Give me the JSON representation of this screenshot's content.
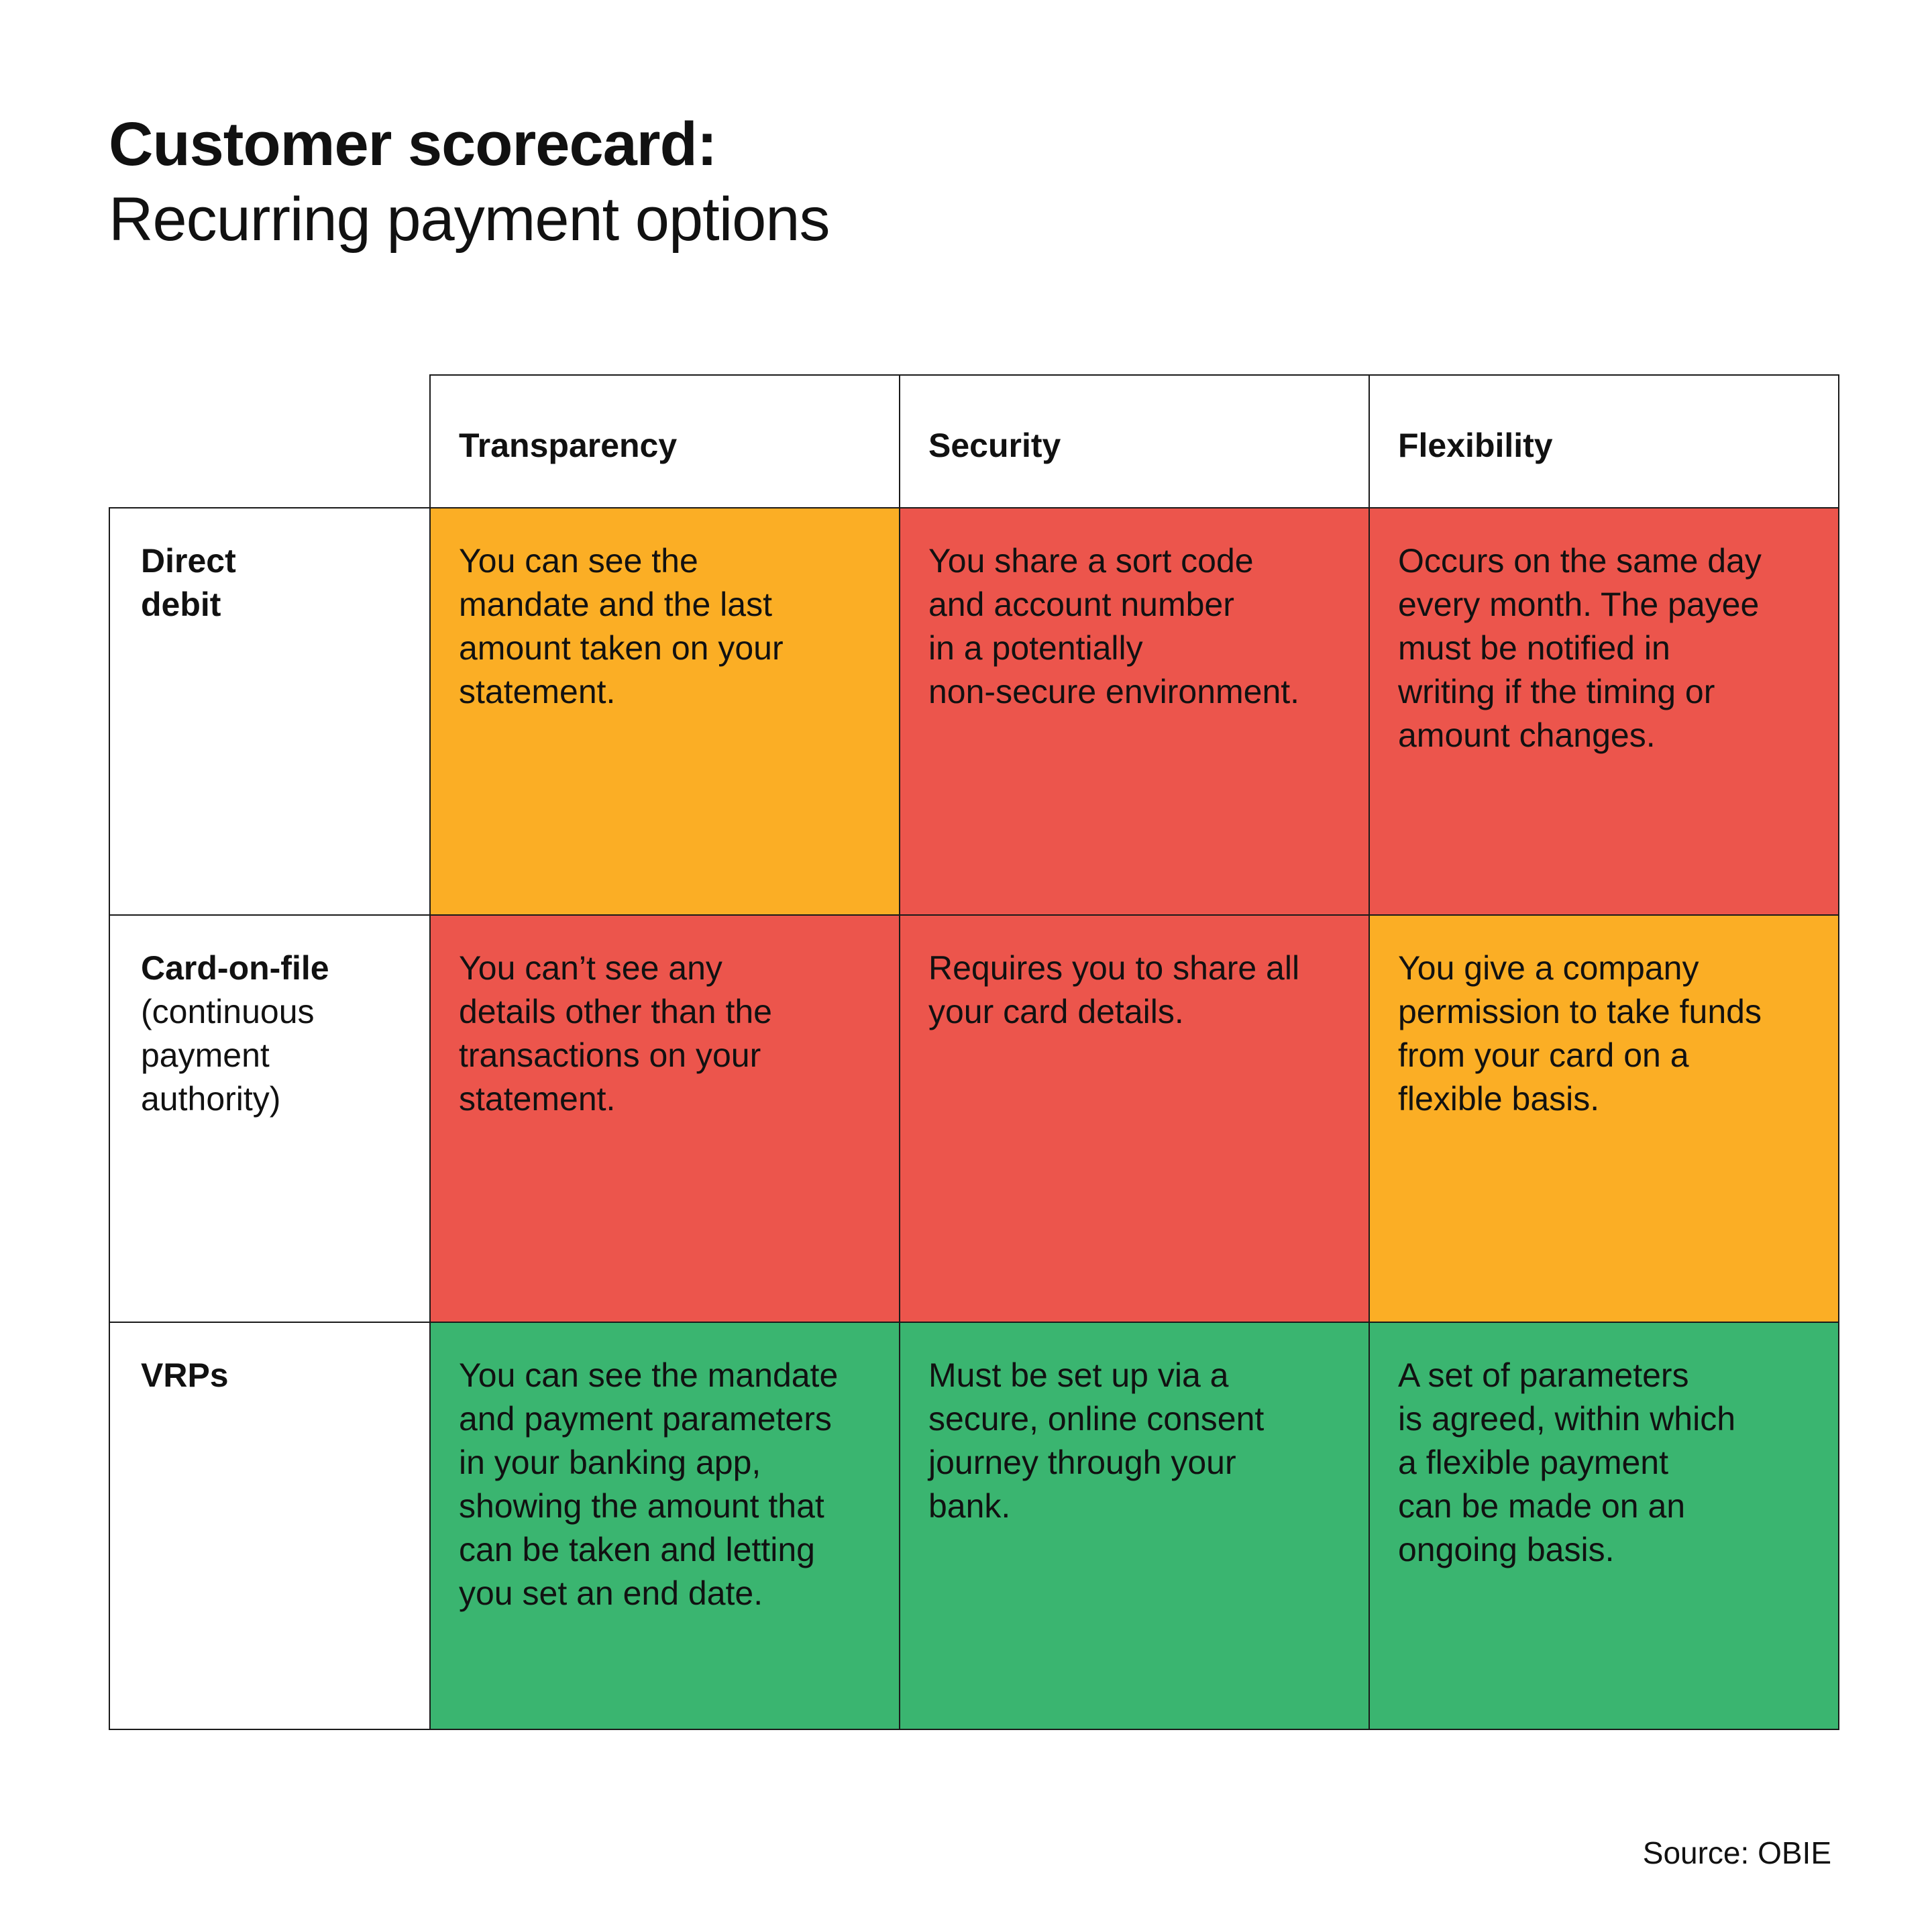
{
  "title": "Customer scorecard:",
  "subtitle": "Recurring payment options",
  "source": "Source: OBIE",
  "colors": {
    "green": "#3AB570",
    "amber": "#FBAE25",
    "red": "#EC554C"
  },
  "chart_data": {
    "type": "table",
    "title": "Customer scorecard: Recurring payment options",
    "columns": [
      "Transparency",
      "Security",
      "Flexibility"
    ],
    "rows": [
      {
        "label": "Direct debit",
        "label_lines": [
          "Direct",
          "debit"
        ],
        "sublabel_lines": [],
        "cells": [
          {
            "rating": "amber",
            "lines": [
              "You can see the",
              "mandate and the last",
              "amount taken on your",
              "statement."
            ]
          },
          {
            "rating": "red",
            "lines": [
              "You share a sort code",
              "and account number",
              "in a potentially",
              "non-secure environment."
            ]
          },
          {
            "rating": "red",
            "lines": [
              "Occurs on the same day",
              "every month. The payee",
              "must be notified in",
              "writing if the timing or",
              "amount changes."
            ]
          }
        ]
      },
      {
        "label": "Card-on-file (continuous payment authority)",
        "label_lines": [
          "Card-on-file"
        ],
        "sublabel_lines": [
          "(continuous",
          "payment",
          "authority)"
        ],
        "cells": [
          {
            "rating": "red",
            "lines": [
              "You can’t see any",
              "details other than the",
              "transactions on your",
              "statement."
            ]
          },
          {
            "rating": "red",
            "lines": [
              "Requires you to share all",
              "your card details."
            ]
          },
          {
            "rating": "amber",
            "lines": [
              "You give a company",
              "permission to take funds",
              "from your card on a",
              "flexible basis."
            ]
          }
        ]
      },
      {
        "label": "VRPs",
        "label_lines": [
          "VRPs"
        ],
        "sublabel_lines": [],
        "cells": [
          {
            "rating": "green",
            "lines": [
              "You can see the mandate",
              "and payment parameters",
              "in your banking app,",
              "showing the amount that",
              "can be taken and letting",
              "you set an end date."
            ]
          },
          {
            "rating": "green",
            "lines": [
              "Must be set up via a",
              "secure, online consent",
              "journey through your",
              "bank."
            ]
          },
          {
            "rating": "green",
            "lines": [
              "A set of parameters",
              "is agreed, within which",
              "a flexible payment",
              "can be made on an",
              "ongoing basis."
            ]
          }
        ]
      }
    ]
  }
}
